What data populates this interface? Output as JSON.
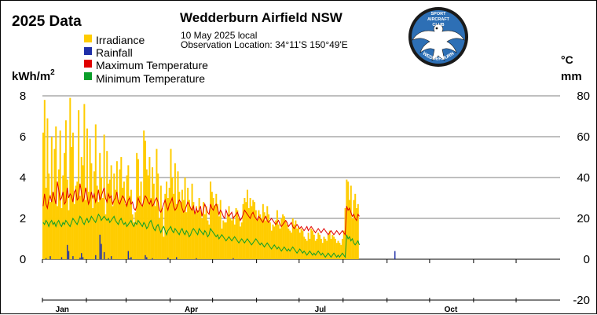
{
  "header": {
    "year_title": "2025 Data",
    "station": "Wedderburn Airfield NSW",
    "date": "10 May 2025 local",
    "location": "Observation Location: 34°11'S 150°49'E"
  },
  "logo": {
    "arc_text": "WEDDERBURN",
    "center_text": [
      "SPORT",
      "AIRCRAFT",
      "CLUB"
    ],
    "colors": {
      "ring": "#1a1a1a",
      "fill": "#2d6fb5",
      "bird": "#ffffff"
    }
  },
  "chart_data": {
    "type": "bar",
    "xlabel": "",
    "left_axis": {
      "label": "kWh/m",
      "superscript": "2",
      "ylim": [
        0,
        8
      ],
      "ticks": [
        "0",
        "2",
        "4",
        "6",
        "8"
      ]
    },
    "right_axis": {
      "label_top": "°C",
      "label_bottom": "mm",
      "ylim": [
        -20,
        80
      ],
      "ticks": [
        "80",
        "60",
        "40",
        "20",
        "0",
        "-20"
      ]
    },
    "month_labels": [
      "Jan",
      "Apr",
      "Jul",
      "Oct"
    ],
    "days_in_year": 365,
    "grid": true,
    "legend_position": "top-left",
    "series": [
      {
        "name": "Irradiance",
        "kind": "bar",
        "axis": "left",
        "color": "#ffcc00",
        "values": [
          6.2,
          7.8,
          3.5,
          6.9,
          4.2,
          2.8,
          6.0,
          3.2,
          5.4,
          6.5,
          2.6,
          4.4,
          6.3,
          2.5,
          4.1,
          5.2,
          6.8,
          3.9,
          2.4,
          7.9,
          5.5,
          6.2,
          2.7,
          3.6,
          3.8,
          7.3,
          3.1,
          5.0,
          4.6,
          7.6,
          2.9,
          6.4,
          3.3,
          5.9,
          4.7,
          2.5,
          4.3,
          6.6,
          3.6,
          2.8,
          5.2,
          4.0,
          3.0,
          6.1,
          2.2,
          5.3,
          3.7,
          3.9,
          4.6,
          2.6,
          4.2,
          3.4,
          4.8,
          2.9,
          4.4,
          5.0,
          3.5,
          3.8,
          2.7,
          4.1,
          4.6,
          3.1,
          3.4,
          2.2,
          1.8,
          2.3,
          5.2,
          4.9,
          3.1,
          3.8,
          2.6,
          6.3,
          5.8,
          4.4,
          4.1,
          5.0,
          3.0,
          4.5,
          3.7,
          2.6,
          5.4,
          4.2,
          2.0,
          3.6,
          2.5,
          1.1,
          3.2,
          3.8,
          3.0,
          3.5,
          5.4,
          4.0,
          3.2,
          4.7,
          2.7,
          4.3,
          3.3,
          2.8,
          3.4,
          2.9,
          4.0,
          2.3,
          3.5,
          2.9,
          2.5,
          3.7,
          2.8,
          2.2,
          2.6,
          2.4,
          3.0,
          2.4,
          2.0,
          2.8,
          2.2,
          2.6,
          1.9,
          1.7,
          3.8,
          3.3,
          3.0,
          2.6,
          3.2,
          2.7,
          2.1,
          2.9,
          1.5,
          1.9,
          1.8,
          1.8,
          2.2,
          2.6,
          2.0,
          1.9,
          2.1,
          1.7,
          2.5,
          2.4,
          2.0,
          1.6,
          1.8,
          2.7,
          3.0,
          2.8,
          3.4,
          2.5,
          3.0,
          2.6,
          2.9,
          2.8,
          2.4,
          1.9,
          2.4,
          2.2,
          2.0,
          2.7,
          2.3,
          1.9,
          2.6,
          2.2,
          1.8,
          1.4,
          1.7,
          1.6,
          1.9,
          2.4,
          1.7,
          1.5,
          2.0,
          2.2,
          2.1,
          1.9,
          1.7,
          1.5,
          1.4,
          1.3,
          2.0,
          1.7,
          1.9,
          1.5,
          1.6,
          1.3,
          1.5,
          1.4,
          1.1,
          1.0,
          0.9,
          1.3,
          1.0,
          1.5,
          1.4,
          1.2,
          0.9,
          1.0,
          1.3,
          1.2,
          1.0,
          0.8,
          1.1,
          1.0,
          0.9,
          1.2,
          1.4,
          1.0,
          1.2,
          1.1,
          1.0,
          0.8,
          0.9,
          0.8,
          0.7,
          1.0,
          1.4,
          2.5,
          3.9,
          3.8,
          2.9,
          3.6,
          2.0,
          2.9,
          3.2,
          2.5,
          2.7
        ]
      },
      {
        "name": "Rainfall",
        "kind": "bar",
        "axis": "right",
        "color": "#1f2fa8",
        "values": [
          0,
          0,
          0.5,
          0,
          0,
          1.5,
          0,
          0,
          0,
          0,
          0,
          0,
          0,
          1.0,
          0,
          0,
          0,
          7.0,
          4.0,
          0,
          0,
          1.5,
          0,
          0,
          0,
          0,
          0.8,
          3.0,
          1.0,
          0,
          0,
          0,
          0,
          0,
          0,
          0,
          0,
          2.0,
          0,
          0,
          12.0,
          7.5,
          0,
          3.5,
          0,
          0,
          0.5,
          0,
          1.5,
          0,
          0,
          0,
          0,
          0,
          0,
          0,
          0,
          0,
          0,
          0,
          4.0,
          0.5,
          1.0,
          0,
          0,
          0,
          0,
          0,
          0,
          0,
          0,
          0,
          2.0,
          1.0,
          0,
          0,
          0,
          0.5,
          0,
          0,
          0,
          0,
          0,
          0,
          0,
          0,
          0,
          0,
          0.8,
          0,
          0,
          0,
          0,
          0,
          1.0,
          0,
          0,
          0,
          0,
          0,
          0,
          0,
          0,
          0,
          0,
          0,
          0,
          0,
          0.5,
          0,
          0,
          0,
          0,
          0,
          0,
          0,
          0,
          0,
          0,
          0,
          0,
          0,
          0,
          0,
          0,
          0,
          0,
          0,
          0,
          0,
          0,
          0,
          0,
          0,
          0.5,
          0,
          0,
          0,
          0,
          0,
          0,
          0,
          0,
          0,
          0,
          0,
          0,
          0,
          0,
          0,
          0,
          0,
          0,
          0,
          0,
          0,
          0,
          0,
          0,
          0,
          0,
          0,
          0,
          0,
          0,
          0,
          0,
          0,
          0,
          0,
          0,
          0,
          0,
          0,
          0,
          0,
          0,
          0,
          0,
          0,
          0,
          0,
          0,
          0,
          0,
          0,
          0,
          0,
          0,
          0,
          0,
          0,
          0,
          0,
          0,
          0,
          0,
          0,
          0,
          0,
          0,
          0,
          0,
          0,
          0,
          0,
          0,
          0,
          0,
          0,
          0,
          0,
          0,
          0,
          0,
          0,
          0,
          0,
          0,
          0,
          0,
          0,
          0,
          0,
          0,
          0,
          0,
          0,
          0,
          0,
          0,
          0,
          0,
          0,
          0,
          0,
          0,
          0,
          0,
          0,
          0,
          0,
          0,
          0,
          0,
          0,
          0,
          0,
          4.0,
          0,
          0,
          0,
          0,
          0,
          0,
          0,
          0,
          0
        ]
      },
      {
        "name": "Maximum Temperature",
        "kind": "line",
        "axis": "right",
        "color": "#e00000",
        "values": [
          26,
          32,
          27,
          25,
          29,
          31,
          28,
          33,
          30,
          27,
          38,
          34,
          29,
          30,
          33,
          27,
          28,
          35,
          30,
          32,
          31,
          28,
          33,
          34,
          29,
          30,
          37,
          33,
          28,
          30,
          35,
          31,
          27,
          29,
          33,
          30,
          32,
          28,
          30,
          34,
          29,
          31,
          33,
          35,
          30,
          28,
          32,
          30,
          31,
          27,
          29,
          30,
          33,
          28,
          27,
          29,
          31,
          30,
          28,
          26,
          29,
          30,
          27,
          28,
          25,
          24,
          26,
          30,
          28,
          27,
          26,
          29,
          31,
          30,
          28,
          27,
          29,
          26,
          27,
          29,
          30,
          28,
          24,
          23,
          25,
          27,
          29,
          26,
          24,
          27,
          28,
          30,
          26,
          24,
          25,
          27,
          29,
          28,
          25,
          23,
          24,
          26,
          28,
          27,
          25,
          24,
          26,
          22,
          25,
          23,
          24,
          26,
          21,
          24,
          27,
          25,
          23,
          22,
          27,
          25,
          24,
          26,
          27,
          25,
          22,
          24,
          23,
          21,
          20,
          24,
          22,
          21,
          22,
          23,
          20,
          21,
          22,
          23,
          21,
          19,
          20,
          22,
          24,
          23,
          22,
          21,
          20,
          22,
          23,
          21,
          20,
          19,
          21,
          20,
          19,
          18,
          20,
          21,
          19,
          18,
          19,
          20,
          19,
          18,
          17,
          18,
          19,
          17,
          16,
          17,
          18,
          19,
          18,
          16,
          17,
          18,
          16,
          15,
          16,
          17,
          16,
          15,
          16,
          15,
          14,
          15,
          16,
          14,
          15,
          16,
          15,
          14,
          13,
          14,
          15,
          14,
          13,
          14,
          15,
          14,
          13,
          12,
          13,
          14,
          13,
          12,
          13,
          14,
          13,
          12,
          13,
          14,
          13,
          12,
          26,
          24,
          25,
          23,
          21,
          22,
          20,
          19,
          22,
          21
        ]
      },
      {
        "name": "Minimum Temperature",
        "kind": "line",
        "axis": "right",
        "color": "#0a9e2a",
        "values": [
          18,
          17,
          19,
          18,
          16,
          18,
          19,
          17,
          18,
          16,
          18,
          19,
          17,
          16,
          18,
          17,
          19,
          18,
          17,
          16,
          18,
          20,
          19,
          18,
          17,
          19,
          21,
          20,
          18,
          17,
          19,
          20,
          18,
          19,
          21,
          20,
          19,
          18,
          20,
          22,
          21,
          19,
          20,
          21,
          20,
          19,
          20,
          18,
          19,
          20,
          21,
          19,
          18,
          17,
          19,
          20,
          18,
          17,
          18,
          16,
          17,
          18,
          19,
          17,
          16,
          18,
          17,
          19,
          18,
          17,
          16,
          18,
          17,
          15,
          16,
          18,
          19,
          17,
          15,
          14,
          16,
          17,
          15,
          13,
          15,
          16,
          14,
          12,
          14,
          15,
          16,
          14,
          13,
          15,
          14,
          13,
          12,
          14,
          15,
          13,
          12,
          14,
          13,
          11,
          12,
          14,
          15,
          14,
          13,
          12,
          15,
          14,
          13,
          12,
          14,
          13,
          11,
          12,
          15,
          14,
          13,
          12,
          11,
          12,
          10,
          11,
          12,
          11,
          10,
          9,
          10,
          11,
          10,
          9,
          10,
          11,
          10,
          9,
          8,
          9,
          10,
          9,
          8,
          9,
          10,
          9,
          8,
          7,
          8,
          9,
          10,
          9,
          8,
          7,
          8,
          7,
          6,
          7,
          8,
          7,
          6,
          5,
          6,
          7,
          6,
          5,
          6,
          5,
          4,
          5,
          6,
          5,
          4,
          5,
          4,
          5,
          6,
          5,
          4,
          3,
          4,
          5,
          4,
          3,
          4,
          3,
          2,
          3,
          4,
          3,
          2,
          3,
          2,
          3,
          4,
          3,
          2,
          3,
          2,
          1,
          2,
          3,
          2,
          1,
          2,
          3,
          2,
          1,
          2,
          1,
          2,
          3,
          2,
          1,
          12,
          10,
          11,
          9,
          10,
          8,
          7,
          8,
          9,
          7
        ]
      }
    ]
  }
}
